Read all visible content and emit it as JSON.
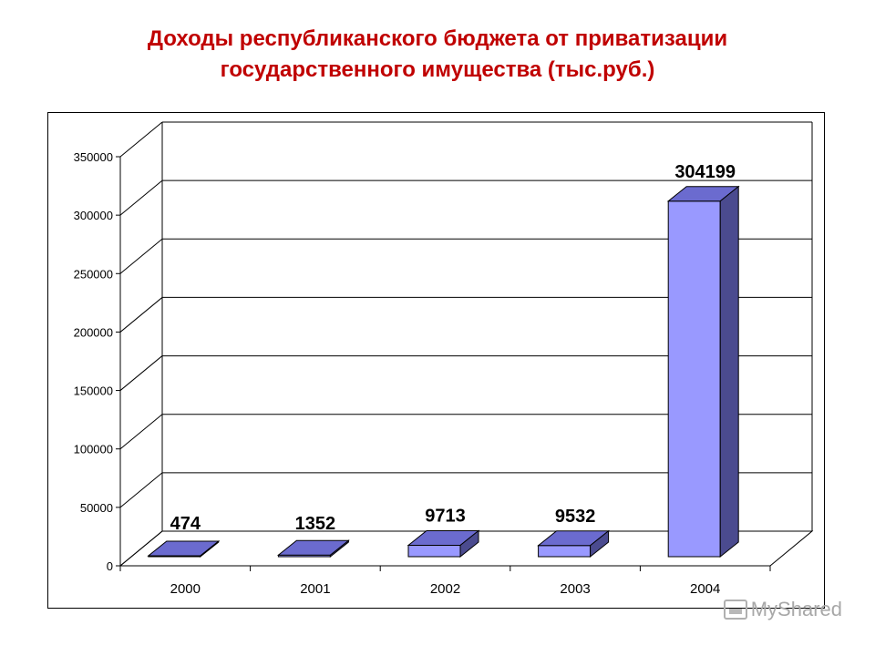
{
  "title_line1": "Доходы республиканского бюджета от приватизации",
  "title_line2": "государственного имущества (тыс.руб.)",
  "watermark": "MyShared",
  "colors": {
    "title": "#c00000",
    "bar_front": "#9999ff",
    "bar_top": "#6b6bcf",
    "bar_side": "#4b4b8f"
  },
  "chart_data": {
    "type": "bar",
    "categories": [
      "2000",
      "2001",
      "2002",
      "2003",
      "2004"
    ],
    "values": [
      474,
      1352,
      9713,
      9532,
      304199
    ],
    "data_labels": [
      "474",
      "1352",
      "9713",
      "9532",
      "304199"
    ],
    "y_ticks": [
      "0",
      "50000",
      "100000",
      "150000",
      "200000",
      "250000",
      "300000",
      "350000"
    ],
    "ylim": [
      0,
      350000
    ],
    "grid": true,
    "legend": "none",
    "style": "3d"
  }
}
